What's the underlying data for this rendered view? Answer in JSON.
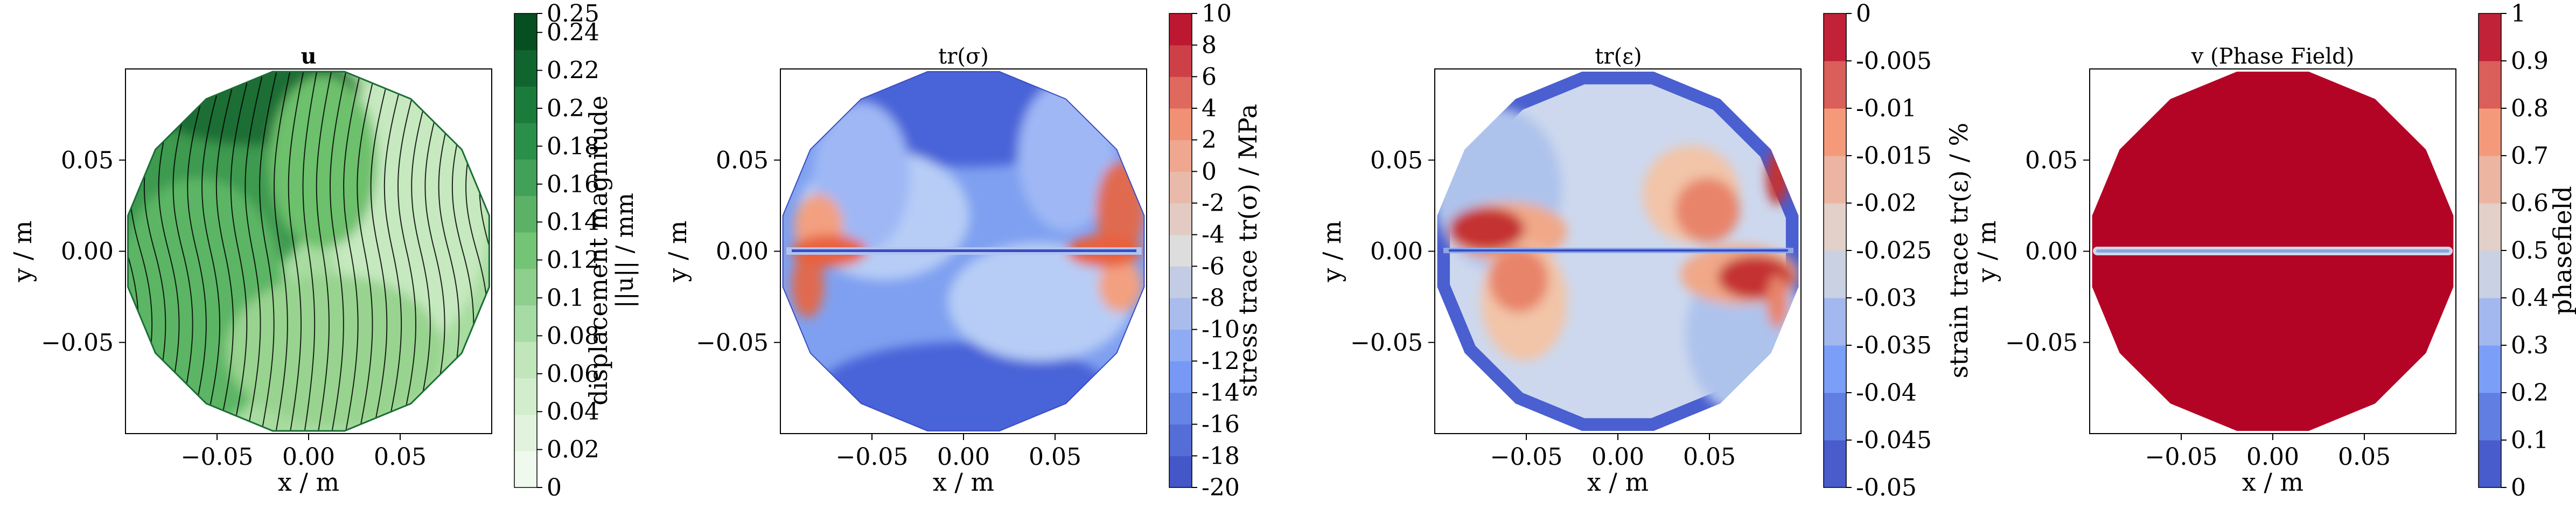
{
  "chart_data": [
    {
      "type": "heatmap",
      "title": "u",
      "xlabel": "x / m",
      "ylabel": "y / m",
      "xlim": [
        -0.1,
        0.1
      ],
      "ylim": [
        -0.1,
        0.1
      ],
      "xticks": [
        "−0.05",
        "0.00",
        "0.05"
      ],
      "yticks": [
        "0.05",
        "0.00",
        "−0.05"
      ],
      "colorbar": {
        "label_line1": "displacement magnitude",
        "label_line2": "||u|| / mm",
        "ticks": [
          "0",
          "0.02",
          "0.04",
          "0.06",
          "0.08",
          "0.1",
          "0.12",
          "0.14",
          "0.16",
          "0.18",
          "0.2",
          "0.22",
          "0.24",
          "0.25"
        ],
        "range": [
          0,
          0.25
        ],
        "colormap": "Greens"
      }
    },
    {
      "type": "heatmap",
      "title": "tr(σ)",
      "xlabel": "x / m",
      "ylabel": "y / m",
      "xlim": [
        -0.1,
        0.1
      ],
      "ylim": [
        -0.1,
        0.1
      ],
      "xticks": [
        "−0.05",
        "0.00",
        "0.05"
      ],
      "yticks": [
        "0.05",
        "0.00",
        "−0.05"
      ],
      "colorbar": {
        "label": "stress trace tr(σ) / MPa",
        "ticks": [
          "-20",
          "-18",
          "-16",
          "-14",
          "-12",
          "-10",
          "-8",
          "-6",
          "-4",
          "-2",
          "0",
          "2",
          "4",
          "6",
          "8",
          "10"
        ],
        "range": [
          -20,
          10
        ],
        "colormap": "coolwarm"
      }
    },
    {
      "type": "heatmap",
      "title": "tr(ε)",
      "xlabel": "x / m",
      "ylabel": "y / m",
      "xlim": [
        -0.1,
        0.1
      ],
      "ylim": [
        -0.1,
        0.1
      ],
      "xticks": [
        "−0.05",
        "0.00",
        "0.05"
      ],
      "yticks": [
        "0.05",
        "0.00",
        "−0.05"
      ],
      "colorbar": {
        "label": "strain trace tr(ε) / %",
        "ticks": [
          "-0.05",
          "-0.045",
          "-0.04",
          "-0.035",
          "-0.03",
          "-0.025",
          "-0.02",
          "-0.015",
          "-0.01",
          "-0.005",
          "0"
        ],
        "range": [
          -0.05,
          0
        ],
        "colormap": "coolwarm"
      }
    },
    {
      "type": "heatmap",
      "title": "v (Phase Field)",
      "xlabel": "x / m",
      "ylabel": "y / m",
      "xlim": [
        -0.1,
        0.1
      ],
      "ylim": [
        -0.1,
        0.1
      ],
      "xticks": [
        "−0.05",
        "0.00",
        "0.05"
      ],
      "yticks": [
        "0.05",
        "0.00",
        "−0.05"
      ],
      "colorbar": {
        "label": "phasefield",
        "ticks": [
          "0",
          "0.1",
          "0.2",
          "0.3",
          "0.4",
          "0.5",
          "0.6",
          "0.7",
          "0.8",
          "0.9",
          "1"
        ],
        "range": [
          0,
          1
        ],
        "colormap": "coolwarm"
      }
    }
  ]
}
